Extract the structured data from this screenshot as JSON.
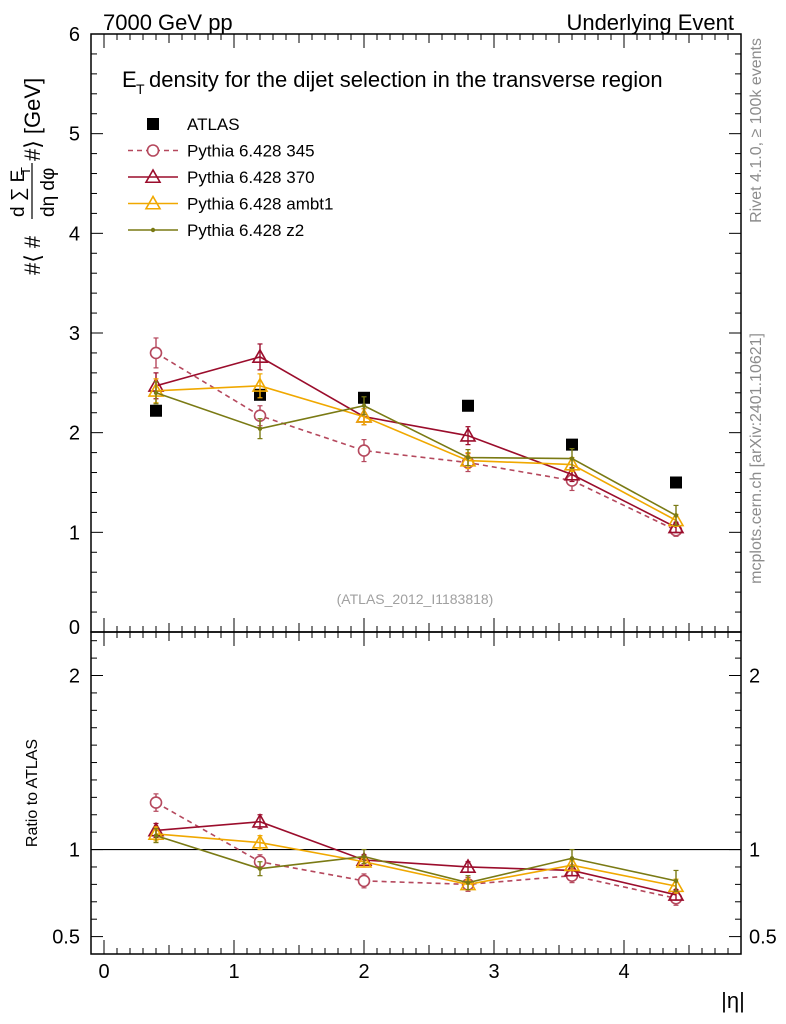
{
  "header": {
    "left": "7000 GeV pp",
    "right": "Underlying Event"
  },
  "plot_title": "E_T density  for the dijet selection in the transverse region",
  "side_text": {
    "rivet": "Rivet 4.1.0, ≥ 100k events",
    "mcplots": "mcplots.cern.ch [arXiv:2401.10621]"
  },
  "watermark": "(ATLAS_2012_I1183818)",
  "chart_data": [
    {
      "type": "line",
      "panel": "main",
      "title": "E_T density  for the dijet selection in the transverse region",
      "ylabel": "#⟨ d∑E_T / dη dφ #⟩ [GeV]",
      "xlabel": "|η|",
      "xlim": [
        -0.1,
        4.9
      ],
      "ylim": [
        0,
        6
      ],
      "yticks": [
        0,
        1,
        2,
        3,
        4,
        5,
        6
      ],
      "legend_position": "top-left",
      "x": [
        0.4,
        1.2,
        2.0,
        2.8,
        3.6,
        4.4
      ],
      "series": [
        {
          "name": "ATLAS",
          "color": "#000000",
          "marker": "square",
          "dash": "none",
          "values": [
            2.22,
            2.38,
            2.35,
            2.27,
            1.88,
            1.5
          ],
          "errors": [
            0.03,
            0.03,
            0.03,
            0.03,
            0.03,
            0.03
          ]
        },
        {
          "name": "Pythia 6.428 345",
          "color": "#b5485d",
          "marker": "circle",
          "dash": "dashed",
          "values": [
            2.8,
            2.17,
            1.82,
            1.7,
            1.52,
            1.02
          ],
          "errors": [
            0.15,
            0.1,
            0.11,
            0.09,
            0.1,
            0.06
          ]
        },
        {
          "name": "Pythia 6.428 370",
          "color": "#9b0d2c",
          "marker": "triangle",
          "dash": "none",
          "values": [
            2.47,
            2.76,
            2.16,
            1.97,
            1.58,
            1.05
          ],
          "errors": [
            0.13,
            0.13,
            0.08,
            0.09,
            0.07,
            0.05
          ]
        },
        {
          "name": "Pythia 6.428 ambt1",
          "color": "#f0a800",
          "marker": "triangle",
          "dash": "none",
          "values": [
            2.42,
            2.47,
            2.16,
            1.72,
            1.68,
            1.12
          ],
          "errors": [
            0.12,
            0.12,
            0.08,
            0.08,
            0.07,
            0.06
          ]
        },
        {
          "name": "Pythia 6.428 z2",
          "color": "#7a7a14",
          "marker": "dot",
          "dash": "none",
          "values": [
            2.4,
            2.04,
            2.27,
            1.75,
            1.74,
            1.17
          ],
          "errors": [
            0.11,
            0.1,
            0.09,
            0.08,
            0.1,
            0.1
          ]
        }
      ]
    },
    {
      "type": "line",
      "panel": "ratio",
      "ylabel": "Ratio to ATLAS",
      "xlabel": "|η|",
      "xlim": [
        -0.1,
        4.9
      ],
      "ylim": [
        0.4,
        2.25
      ],
      "yticks": [
        0.5,
        1,
        2
      ],
      "xticks": [
        0,
        1,
        2,
        3,
        4
      ],
      "reference_line": 1,
      "x": [
        0.4,
        1.2,
        2.0,
        2.8,
        3.6,
        4.4
      ],
      "series": [
        {
          "name": "Pythia 6.428 345",
          "color": "#b5485d",
          "marker": "circle",
          "dash": "dashed",
          "values": [
            1.27,
            0.93,
            0.82,
            0.8,
            0.85,
            0.72
          ],
          "errors": [
            0.05,
            0.04,
            0.04,
            0.04,
            0.04,
            0.04
          ]
        },
        {
          "name": "Pythia 6.428 370",
          "color": "#9b0d2c",
          "marker": "triangle",
          "dash": "none",
          "values": [
            1.11,
            1.16,
            0.94,
            0.9,
            0.88,
            0.74
          ],
          "errors": [
            0.04,
            0.04,
            0.03,
            0.03,
            0.03,
            0.03
          ]
        },
        {
          "name": "Pythia 6.428 ambt1",
          "color": "#f0a800",
          "marker": "triangle",
          "dash": "none",
          "values": [
            1.09,
            1.04,
            0.93,
            0.8,
            0.91,
            0.79
          ],
          "errors": [
            0.04,
            0.04,
            0.03,
            0.03,
            0.03,
            0.04
          ]
        },
        {
          "name": "Pythia 6.428 z2",
          "color": "#7a7a14",
          "marker": "dot",
          "dash": "none",
          "values": [
            1.08,
            0.89,
            0.96,
            0.81,
            0.95,
            0.82
          ],
          "errors": [
            0.04,
            0.04,
            0.04,
            0.04,
            0.05,
            0.06
          ]
        }
      ]
    }
  ]
}
